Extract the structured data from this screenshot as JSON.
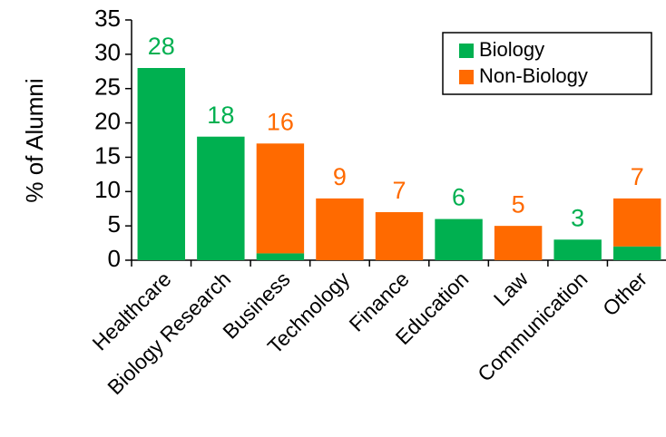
{
  "chart_data": {
    "type": "stacked_bar",
    "ylabel": "% of Alumni",
    "categories": [
      "Healthcare",
      "Biology Research",
      "Business",
      "Technology",
      "Finance",
      "Education",
      "Law",
      "Communication",
      "Other"
    ],
    "series": [
      {
        "name": "Biology",
        "color": "#00b050",
        "values": [
          28,
          18,
          1,
          null,
          null,
          6,
          null,
          3,
          2
        ]
      },
      {
        "name": "Non-Biology",
        "color": "#ff6a00",
        "values": [
          null,
          null,
          16,
          9,
          7,
          null,
          5,
          null,
          7
        ]
      }
    ],
    "ylim": [
      0,
      35
    ],
    "yticks": [
      0,
      5,
      10,
      15,
      20,
      25,
      30,
      35
    ],
    "legend": "upper right",
    "grid": false
  }
}
